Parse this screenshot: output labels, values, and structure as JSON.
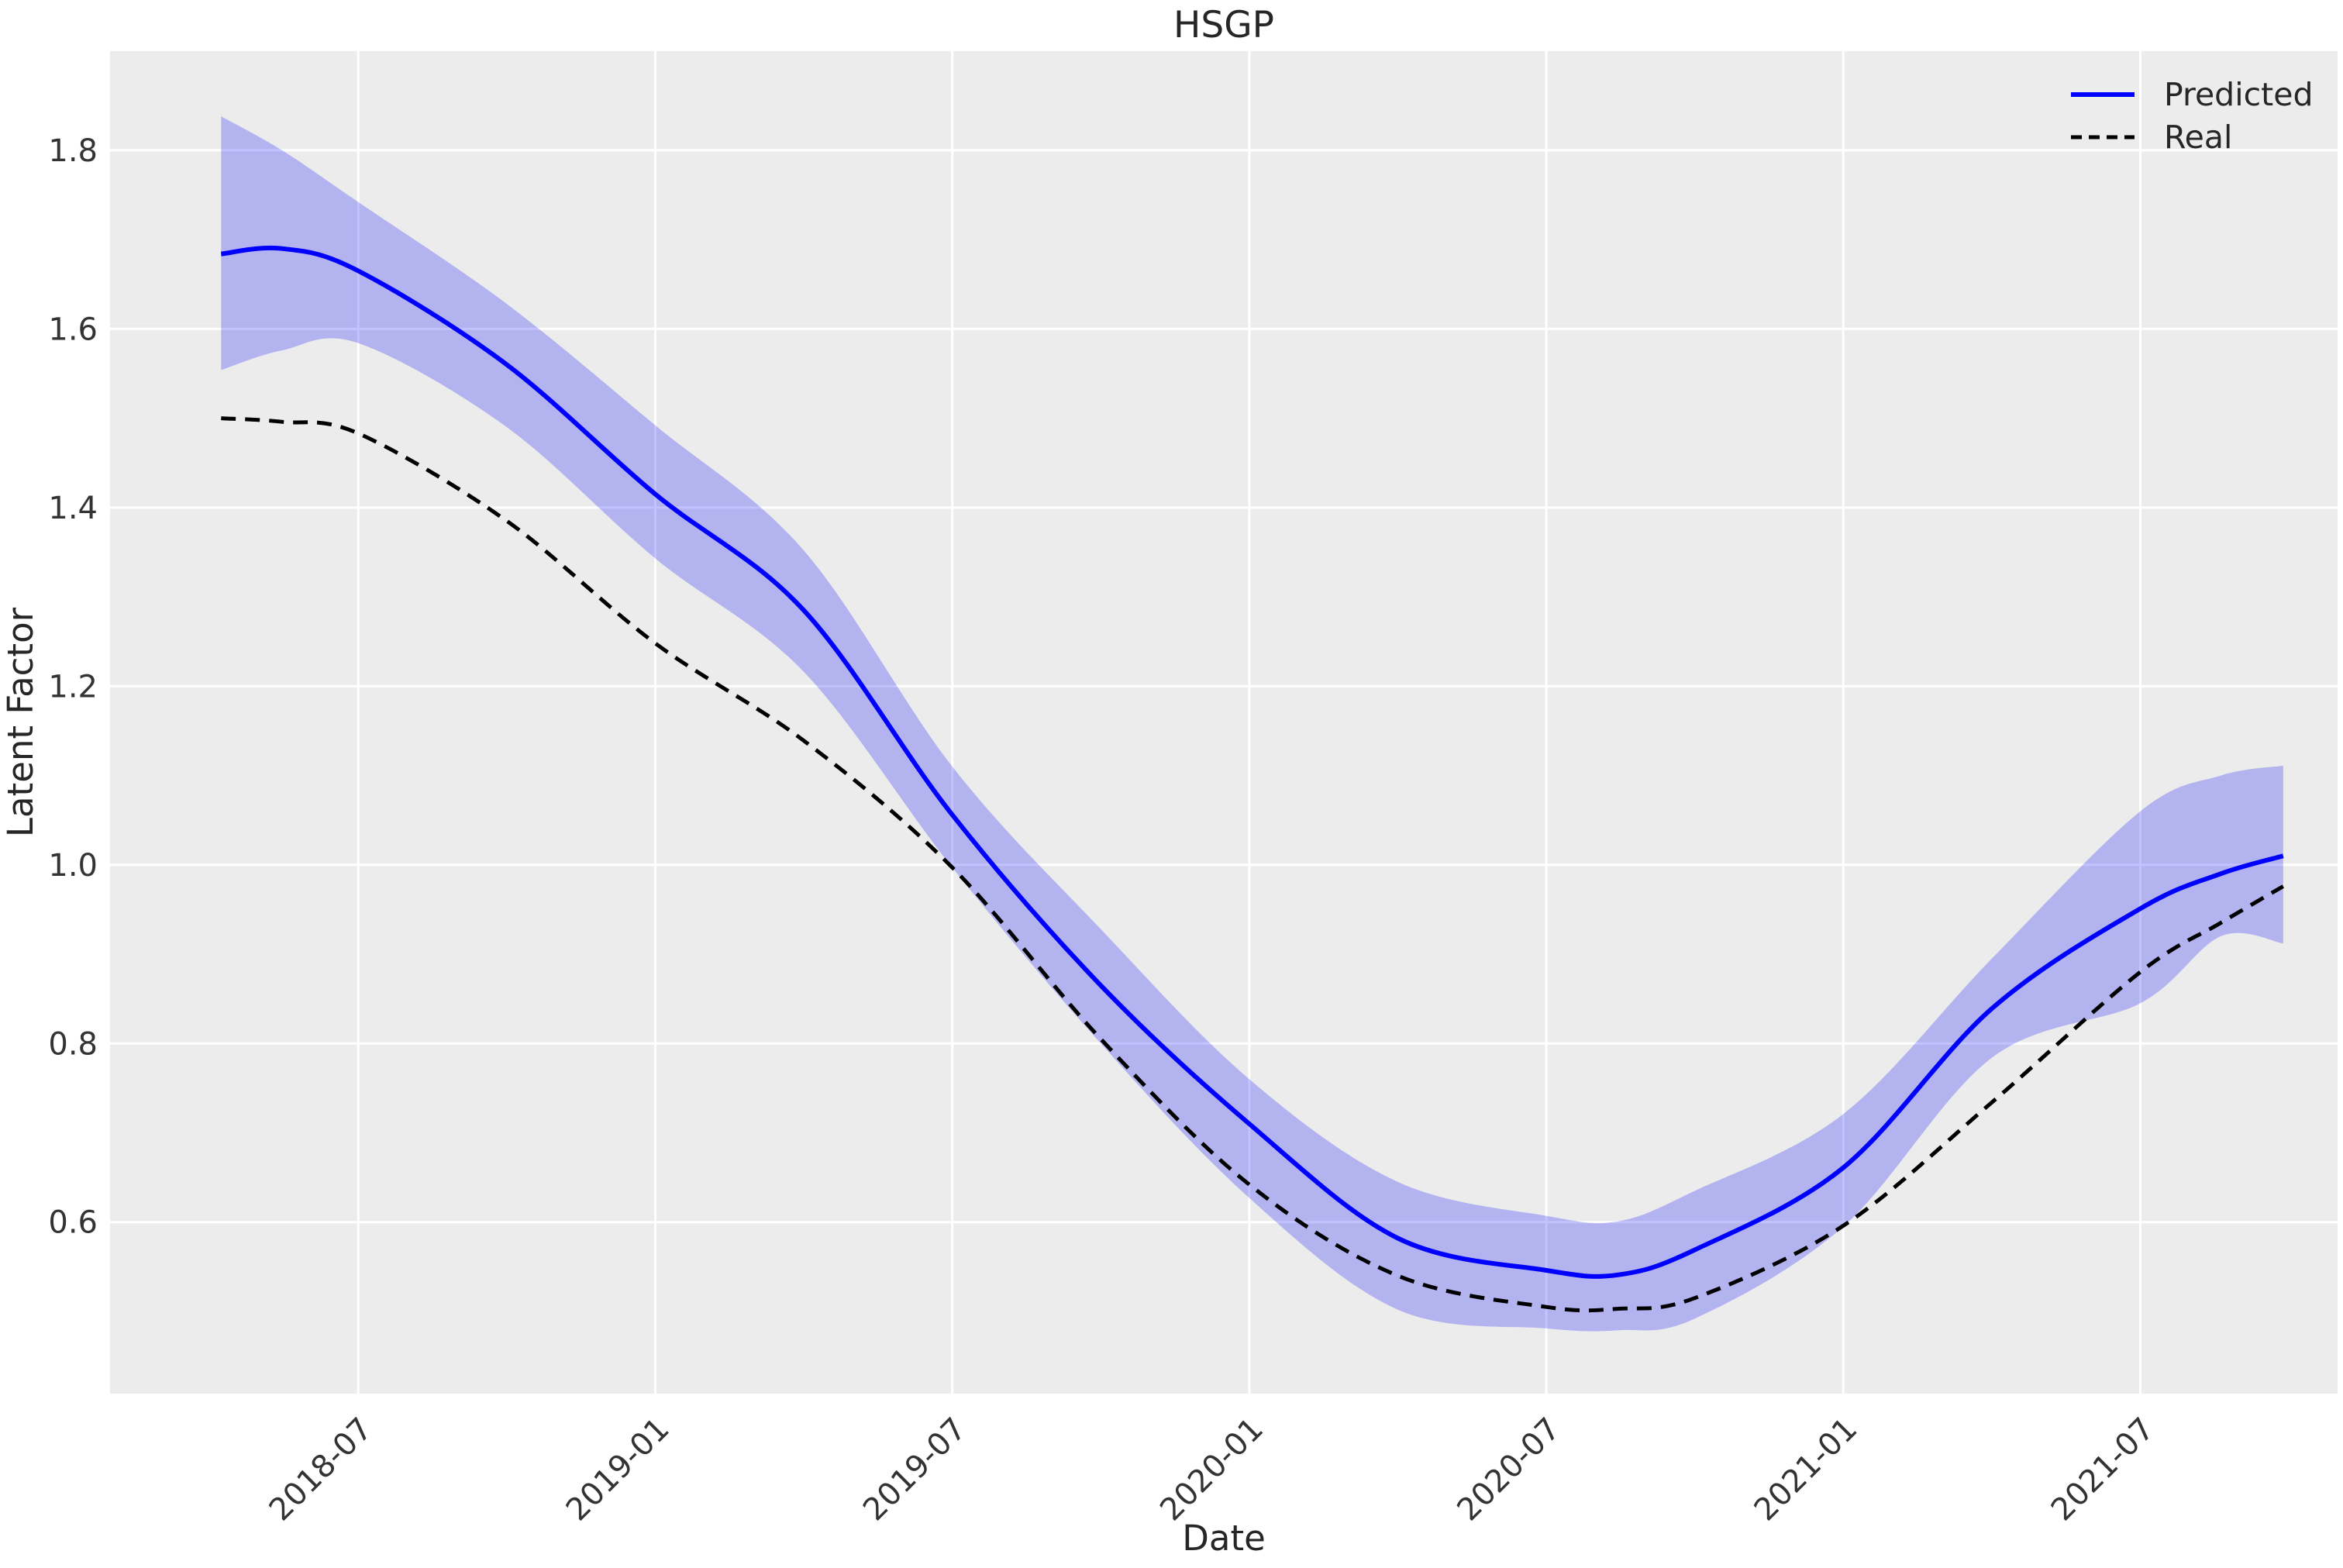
{
  "title": "HSGP",
  "colors": {
    "figure_background": "#ffffff",
    "plot_background": "#ececec",
    "grid": "#ffffff",
    "text": "#262626",
    "tick_text": "#333333",
    "predicted_line": "#0000ff",
    "real_line": "#000000",
    "band_fill": "#0000ff"
  },
  "legend": {
    "entries": [
      {
        "label": "Predicted",
        "style": "solid",
        "color": "#0000ff"
      },
      {
        "label": "Real",
        "style": "dashed",
        "color": "#000000"
      }
    ]
  },
  "chart_data": {
    "type": "line",
    "title": "HSGP",
    "xlabel": "Date",
    "ylabel": "Latent Factor",
    "grid": true,
    "legend_position": "upper right",
    "xlim_dates": [
      "2018-01-31",
      "2021-10-31"
    ],
    "ylim": [
      0.408,
      1.911
    ],
    "y_ticks": [
      1.8,
      1.6,
      1.4,
      1.2,
      1.0,
      0.8,
      0.6
    ],
    "x_ticks": [
      {
        "label": "2018-07",
        "date": "2018-07-01"
      },
      {
        "label": "2019-01",
        "date": "2019-01-01"
      },
      {
        "label": "2019-07",
        "date": "2019-07-01"
      },
      {
        "label": "2020-01",
        "date": "2020-01-01"
      },
      {
        "label": "2020-07",
        "date": "2020-07-01"
      },
      {
        "label": "2021-01",
        "date": "2021-01-01"
      },
      {
        "label": "2021-07",
        "date": "2021-07-01"
      }
    ],
    "x_dates": [
      "2018-04-08",
      "2018-05-15",
      "2018-07-01",
      "2018-10-01",
      "2019-01-01",
      "2019-04-01",
      "2019-07-01",
      "2019-10-01",
      "2020-01-01",
      "2020-04-01",
      "2020-07-01",
      "2020-08-15",
      "2020-10-01",
      "2021-01-01",
      "2021-04-01",
      "2021-07-01",
      "2021-08-20",
      "2021-09-28"
    ],
    "series": [
      {
        "name": "Predicted",
        "color": "#0000ff",
        "style": "solid",
        "line_width": 6,
        "values": [
          1.684,
          1.69,
          1.665,
          1.56,
          1.415,
          1.285,
          1.056,
          0.865,
          0.71,
          0.582,
          0.546,
          0.541,
          0.569,
          0.661,
          0.839,
          0.951,
          0.99,
          1.01
        ]
      },
      {
        "name": "Real",
        "color": "#000000",
        "style": "dashed",
        "line_width": 5,
        "values": [
          1.5,
          1.496,
          1.483,
          1.385,
          1.248,
          1.139,
          0.997,
          0.805,
          0.642,
          0.54,
          0.505,
          0.503,
          0.515,
          0.596,
          0.734,
          0.88,
          0.935,
          0.976
        ]
      }
    ],
    "uncertainty_band": {
      "series": "Predicted",
      "color": "#0000ff",
      "opacity": 0.24,
      "lower": [
        1.554,
        1.576,
        1.584,
        1.49,
        1.343,
        1.216,
        0.997,
        0.8,
        0.627,
        0.502,
        0.481,
        0.479,
        0.492,
        0.595,
        0.784,
        0.845,
        0.92,
        0.912
      ],
      "upper": [
        1.838,
        1.8,
        1.742,
        1.628,
        1.492,
        1.352,
        1.11,
        0.928,
        0.76,
        0.645,
        0.607,
        0.601,
        0.635,
        0.721,
        0.895,
        1.06,
        1.1,
        1.111
      ]
    }
  }
}
